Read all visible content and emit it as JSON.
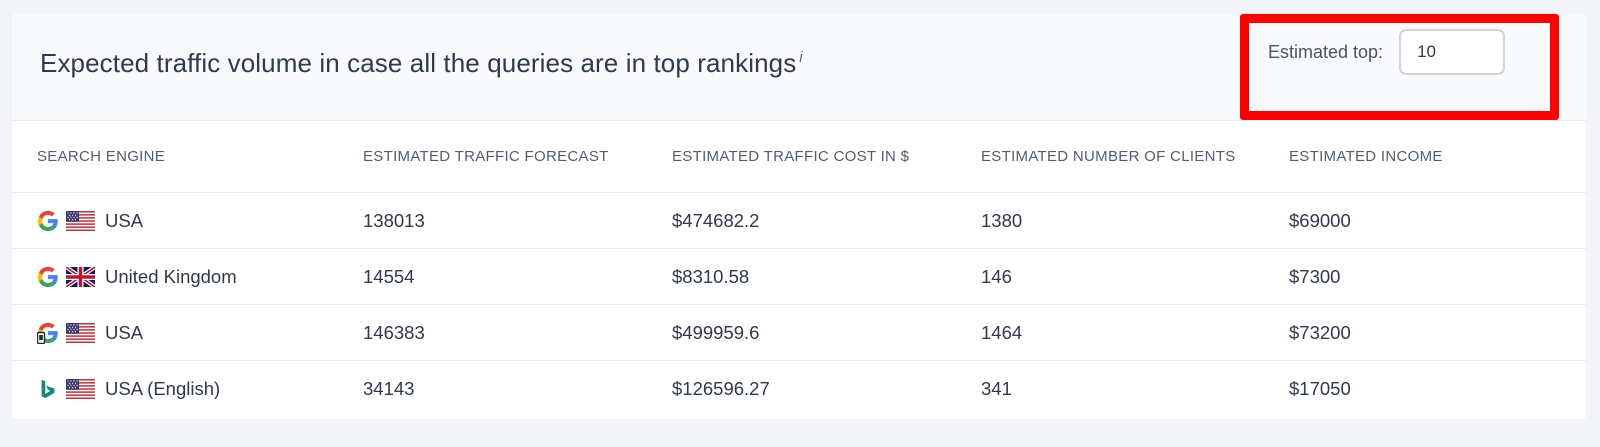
{
  "header": {
    "title": "Expected traffic volume in case all the queries are in top rankings",
    "info_marker": "i",
    "top_label": "Estimated top:",
    "top_value": "10"
  },
  "table": {
    "columns": [
      "SEARCH ENGINE",
      "ESTIMATED TRAFFIC FORECAST",
      "ESTIMATED TRAFFIC COST IN $",
      "ESTIMATED NUMBER OF CLIENTS",
      "ESTIMATED INCOME"
    ],
    "rows": [
      {
        "engine_icon": "google-icon",
        "flag_icon": "us-flag-icon",
        "region": "USA",
        "traffic": "138013",
        "cost": "$474682.2",
        "clients": "1380",
        "income": "$69000"
      },
      {
        "engine_icon": "google-icon",
        "flag_icon": "uk-flag-icon",
        "region": "United Kingdom",
        "traffic": "14554",
        "cost": "$8310.58",
        "clients": "146",
        "income": "$7300"
      },
      {
        "engine_icon": "google-mobile-icon",
        "flag_icon": "us-flag-icon",
        "region": "USA",
        "traffic": "146383",
        "cost": "$499959.6",
        "clients": "1464",
        "income": "$73200"
      },
      {
        "engine_icon": "bing-icon",
        "flag_icon": "us-flag-icon",
        "region": "USA (English)",
        "traffic": "34143",
        "cost": "$126596.27",
        "clients": "341",
        "income": "$17050"
      }
    ]
  },
  "colors": {
    "highlight": "#ff0000",
    "text": "#2d3a4f",
    "header_text": "#4d5f73",
    "bing": "#138a7c"
  }
}
